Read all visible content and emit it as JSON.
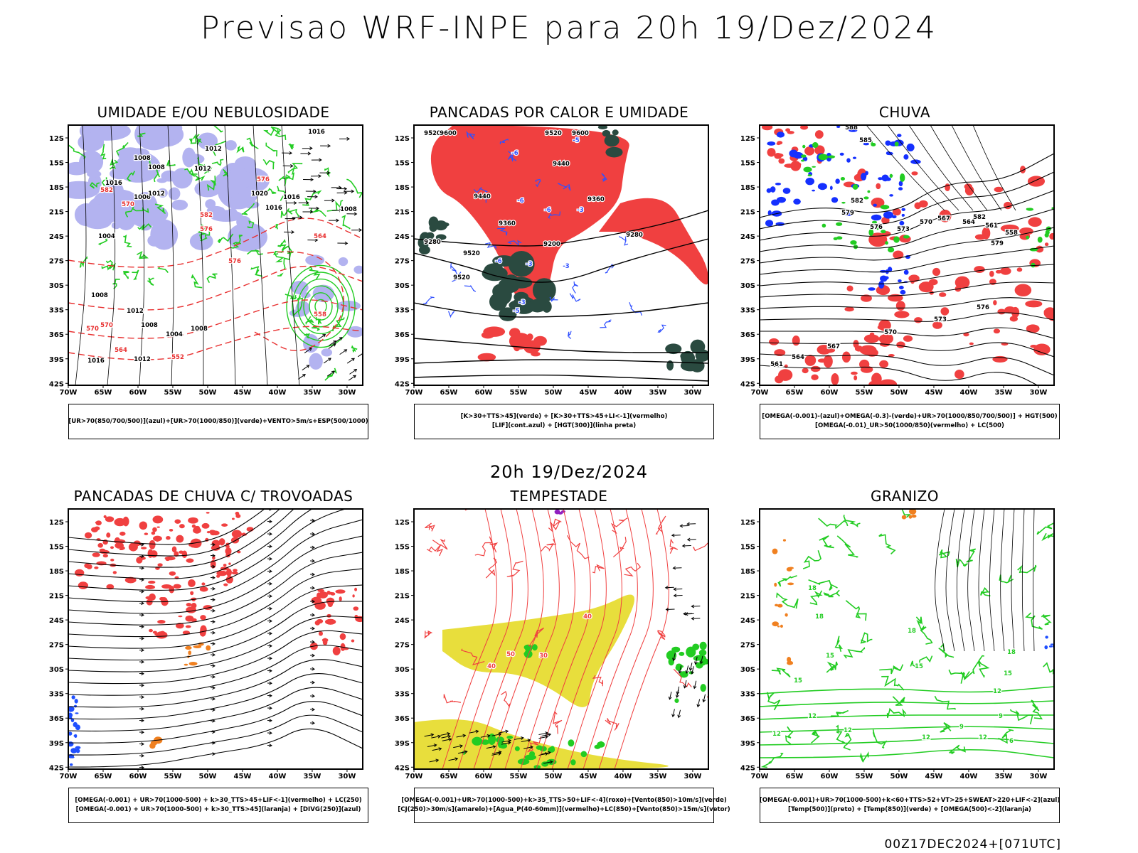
{
  "header": {
    "title": "Previsao WRF-INPE  para 20h 19/Dez/2024"
  },
  "middle_title": "20h 19/Dez/2024",
  "footer": "00Z17DEC2024+[071UTC]",
  "axes": {
    "lat_labels": [
      "12S",
      "15S",
      "18S",
      "21S",
      "24S",
      "27S",
      "30S",
      "33S",
      "36S",
      "39S",
      "42S"
    ],
    "lon_labels": [
      "70W",
      "65W",
      "60W",
      "55W",
      "50W",
      "45W",
      "40W",
      "35W",
      "30W"
    ]
  },
  "panels": [
    {
      "id": "umidade",
      "title": "UMIDADE E/OU NEBULOSIDADE",
      "legend": [
        "[UR>70(850/700/500)](azul)+[UR>70(1000/850)](verde)+VENTO>5m/s+ESP(500/1000)"
      ],
      "labels": [
        "1016",
        "1012",
        "1012",
        "1008",
        "1008",
        "1006",
        "1016",
        "1012",
        "1016",
        "1016",
        "1020",
        "1008",
        "1004",
        "1008",
        "1016",
        "1012",
        "1008",
        "1008",
        "1004",
        "1012"
      ],
      "red_labels": [
        "570",
        "576",
        "582",
        "576",
        "570",
        "570",
        "564",
        "558",
        "552",
        "582",
        "576",
        "564"
      ],
      "colors": {
        "blue_fill": "#b3b3f0",
        "green": "#22cc22",
        "red": "#e83030"
      }
    },
    {
      "id": "pancadas_calor",
      "title": "PANCADAS POR CALOR E UMIDADE",
      "legend": [
        "[K>30+TTS>45](verde) + [K>30+TTS>45+LI<-1](vermelho)",
        "[LIF](cont.azul) + [HGT(300)](linha preta)"
      ],
      "labels": [
        "9600",
        "9520",
        "9600",
        "9520",
        "9520",
        "9440",
        "9440",
        "9360",
        "9360",
        "9280",
        "9280",
        "9200",
        "9520"
      ],
      "blue_labels": [
        "-6",
        "-5",
        "-6",
        "-3",
        "-6",
        "-3",
        "-3",
        "-6",
        "-5",
        "-3"
      ],
      "colors": {
        "red_fill": "#f04040",
        "dark_green": "#2a4a40",
        "blue": "#3050ff"
      }
    },
    {
      "id": "chuva",
      "title": "CHUVA",
      "legend": [
        "[OMEGA(-0.001)-(azul)+OMEGA(-0.3)-(verde)+UR>70(1000/850/700/500)] + HGT(500)",
        "[OMEGA(-0.01)_UR>50(1000/850)(vermelho) + LC(500)"
      ],
      "labels": [
        "588",
        "585",
        "582",
        "579",
        "576",
        "573",
        "570",
        "567",
        "564",
        "561",
        "558",
        "582",
        "579",
        "576",
        "573",
        "570",
        "567",
        "564",
        "561"
      ],
      "colors": {
        "red": "#f04040",
        "blue": "#1530ff",
        "green": "#22cc22"
      }
    },
    {
      "id": "trovoadas",
      "title": "PANCADAS DE CHUVA C/ TROVOADAS",
      "legend": [
        "[OMEGA(-0.001) + UR>70(1000-500) + k>30_TTS>45+LIF<-1](vermelho) + LC(250)",
        "[OMEGA(-0.001) + UR>70(1000-500) + k>30_TTS>45](laranja) + [DIVG(250)](azul)"
      ],
      "colors": {
        "red": "#f04040",
        "orange": "#f08020",
        "blue": "#2050ff"
      }
    },
    {
      "id": "tempestade",
      "title": "TEMPESTADE",
      "legend": [
        "[OMEGA(-0.001)+UR>70(1000-500)+k>35_TTS>50+LIF<-4](roxo)+[Vento(850)>10m/s](verde)",
        "[CJ(250)>30m/s](amarelo)+[Agua_P(40-60mm)](vermelho)+LC(850)+[Vento(850)>15m/s](vetor)"
      ],
      "labels": [
        "40",
        "50",
        "40",
        "30"
      ],
      "colors": {
        "yellow": "#e8de3c",
        "red": "#f04040",
        "green": "#22cc22",
        "purple": "#9020c0"
      }
    },
    {
      "id": "granizo",
      "title": "GRANIZO",
      "legend": [
        "[OMEGA(-0.001)+UR>70(1000-500)+k<60+TTS>52+VT>25+SWEAT>220+LIF<-2](azul)",
        "[Temp(500)](preto) + [Temp(850)](verde) + [OMEGA(500)<-2](laranja)"
      ],
      "labels": [
        "18",
        "18",
        "15",
        "15",
        "12",
        "12",
        "18",
        "15",
        "12",
        "9",
        "12",
        "18",
        "15",
        "12",
        "9",
        "6",
        "12"
      ],
      "colors": {
        "green": "#22cc22",
        "orange": "#f08020",
        "blue": "#2050ff"
      }
    }
  ]
}
